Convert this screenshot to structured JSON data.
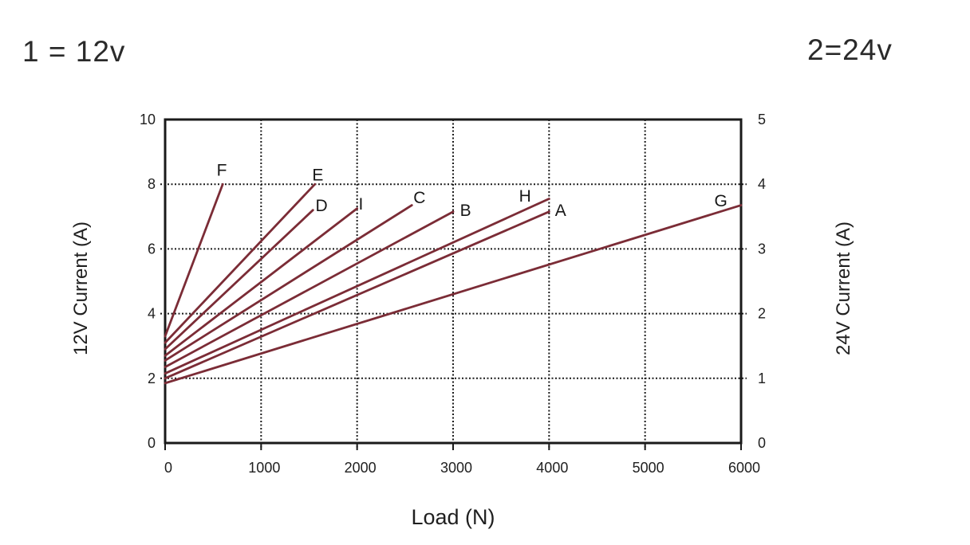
{
  "page": {
    "left_header": "1 = 12v",
    "right_header": "2=24v"
  },
  "chart_data": {
    "type": "line",
    "title": "",
    "xlabel": "Load (N)",
    "ylabel_left": "12V  Current (A)",
    "ylabel_right": "24V  Current (A)",
    "xlim": [
      0,
      6000
    ],
    "ylim_left": [
      0,
      10
    ],
    "ylim_right": [
      0,
      5
    ],
    "x_ticks": [
      0,
      1000,
      2000,
      3000,
      4000,
      5000,
      6000
    ],
    "y_left_ticks": [
      0,
      2,
      4,
      6,
      8,
      10
    ],
    "y_right_ticks": [
      0,
      1,
      2,
      3,
      4,
      5
    ],
    "grid": {
      "x_lines": [
        1000,
        2000,
        3000,
        4000,
        5000
      ],
      "y_lines": [
        2,
        4,
        6,
        8
      ],
      "style": "dotted"
    },
    "line_color": "#7b2c36",
    "axis_color": "#1a1a1a",
    "series": [
      {
        "name": "A",
        "points": [
          [
            0,
            2.0
          ],
          [
            4000,
            7.15
          ]
        ],
        "label_at": [
          4120,
          7.2
        ]
      },
      {
        "name": "B",
        "points": [
          [
            0,
            2.35
          ],
          [
            3000,
            7.15
          ]
        ],
        "label_at": [
          3130,
          7.2
        ]
      },
      {
        "name": "C",
        "points": [
          [
            0,
            2.55
          ],
          [
            2570,
            7.35
          ]
        ],
        "label_at": [
          2650,
          7.6
        ]
      },
      {
        "name": "D",
        "points": [
          [
            0,
            2.9
          ],
          [
            1540,
            7.2
          ]
        ],
        "label_at": [
          1630,
          7.35
        ]
      },
      {
        "name": "E",
        "points": [
          [
            0,
            3.1
          ],
          [
            1560,
            8.0
          ]
        ],
        "label_at": [
          1590,
          8.3
        ]
      },
      {
        "name": "F",
        "points": [
          [
            0,
            3.3
          ],
          [
            600,
            8.0
          ]
        ],
        "label_at": [
          590,
          8.45
        ]
      },
      {
        "name": "G",
        "points": [
          [
            0,
            1.85
          ],
          [
            6000,
            7.35
          ]
        ],
        "label_at": [
          5790,
          7.5
        ]
      },
      {
        "name": "H",
        "points": [
          [
            0,
            2.15
          ],
          [
            4000,
            7.55
          ]
        ],
        "label_at": [
          3750,
          7.65
        ]
      },
      {
        "name": "I",
        "points": [
          [
            0,
            2.7
          ],
          [
            2000,
            7.25
          ]
        ],
        "label_at": [
          2040,
          7.4
        ]
      }
    ]
  }
}
